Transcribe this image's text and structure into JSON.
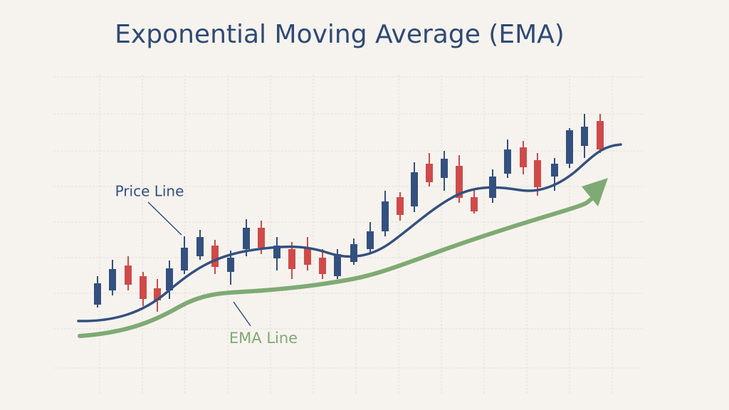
{
  "title": "Exponential Moving Average (EMA)",
  "labels": {
    "price_line": "Price Line",
    "ema_line": "EMA Line"
  }
}
